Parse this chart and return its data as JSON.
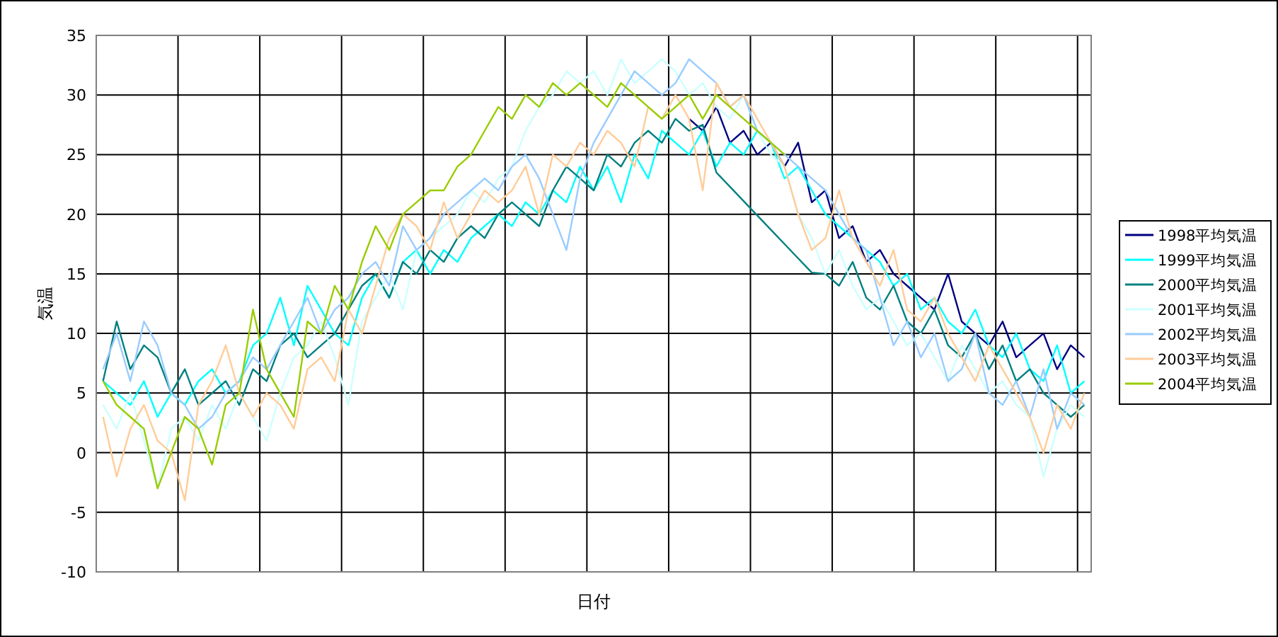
{
  "chart_data": {
    "type": "line",
    "xlabel": "日付",
    "ylabel": "気温",
    "categories": [
      null,
      null,
      null,
      null,
      null,
      null,
      null,
      null,
      null,
      null,
      null,
      null,
      null,
      null,
      null,
      null,
      null,
      null,
      null,
      null,
      null,
      null,
      null,
      null,
      null,
      null,
      null,
      null,
      null,
      null,
      null,
      null,
      null,
      null,
      null,
      null,
      null,
      null,
      null,
      null,
      null,
      null,
      null,
      null,
      null,
      null,
      null,
      null,
      null,
      null,
      null,
      null,
      null,
      null,
      null,
      null,
      null,
      null,
      null,
      null,
      null,
      null,
      null,
      null,
      null,
      null,
      null,
      null,
      null,
      null,
      null,
      null,
      null
    ],
    "series": [
      {
        "name": "1998平均気温",
        "color": "#000080",
        "values": [
          null,
          null,
          null,
          null,
          null,
          null,
          null,
          null,
          null,
          null,
          null,
          null,
          null,
          null,
          null,
          null,
          null,
          null,
          null,
          null,
          null,
          null,
          null,
          null,
          null,
          null,
          null,
          null,
          null,
          null,
          null,
          null,
          null,
          null,
          null,
          null,
          null,
          null,
          null,
          null,
          null,
          null,
          null,
          28,
          27,
          29,
          26,
          27,
          25,
          26,
          24,
          26,
          21,
          22,
          18,
          19,
          16,
          17,
          15,
          14,
          13,
          12,
          15,
          11,
          10,
          9,
          11,
          8,
          9,
          10,
          7,
          9,
          8
        ]
      },
      {
        "name": "1999平均気温",
        "color": "#00ffff",
        "values": [
          6,
          5,
          4,
          6,
          3,
          5,
          4,
          6,
          7,
          5,
          6,
          9,
          10,
          13,
          9,
          14,
          12,
          10,
          9,
          13,
          15,
          13,
          16,
          17,
          15,
          17,
          16,
          18,
          19,
          20,
          19,
          21,
          20,
          22,
          21,
          24,
          22,
          24,
          21,
          25,
          23,
          27,
          26,
          25,
          27,
          24,
          26,
          25,
          27,
          26,
          23,
          24,
          22,
          20,
          19,
          18,
          17,
          16,
          14,
          15,
          12,
          13,
          11,
          10,
          12,
          9,
          8,
          10,
          7,
          6,
          9,
          5,
          6
        ]
      },
      {
        "name": "2000平均気温",
        "color": "#008080",
        "values": [
          6,
          11,
          7,
          9,
          8,
          5,
          7,
          4,
          5,
          6,
          4,
          7,
          6,
          9,
          10,
          8,
          9,
          10,
          12,
          14,
          15,
          13,
          16,
          15,
          17,
          16,
          18,
          19,
          18,
          20,
          21,
          20,
          19,
          22,
          24,
          23,
          22,
          25,
          24,
          26,
          27,
          26,
          28,
          27,
          27.5,
          23.5,
          22.3,
          21.1,
          19.9,
          18.7,
          17.5,
          16.3,
          15.1,
          15,
          14,
          16,
          13,
          12,
          14,
          11,
          10,
          12,
          9,
          8,
          10,
          7,
          9,
          6,
          7,
          5,
          4,
          3,
          4
        ]
      },
      {
        "name": "2001平均気温",
        "color": "#ccffff",
        "values": [
          4,
          2,
          5,
          1,
          -3,
          2,
          3,
          1,
          4,
          2,
          5,
          3,
          1,
          5,
          8,
          9,
          11,
          8,
          4,
          11,
          13,
          15,
          12,
          17,
          18,
          19,
          20,
          22,
          21,
          23,
          24,
          27,
          29,
          30,
          32,
          31,
          32,
          30,
          33,
          31,
          32,
          33,
          32,
          30,
          31,
          29,
          28,
          30,
          27,
          25,
          24,
          20,
          18,
          15,
          17,
          14,
          12,
          13,
          11,
          9,
          10,
          8,
          6,
          9,
          7,
          5,
          6,
          4,
          3,
          -2,
          2,
          4,
          3
        ]
      },
      {
        "name": "2002平均気温",
        "color": "#99ccff",
        "values": [
          7,
          10,
          6,
          11,
          9,
          5,
          4,
          2,
          3,
          5,
          6,
          8,
          7,
          9,
          11,
          13,
          10,
          12,
          13,
          15,
          16,
          14,
          19,
          17,
          18,
          20,
          21,
          22,
          23,
          22,
          24,
          25,
          23,
          20,
          17,
          23,
          26,
          28,
          30,
          32,
          31,
          30,
          31,
          33,
          32,
          31,
          29,
          30,
          27,
          26,
          25,
          24,
          23,
          22,
          20,
          18,
          17,
          13,
          9,
          11,
          8,
          10,
          6,
          7,
          10,
          5,
          4,
          6,
          3,
          7,
          2,
          5,
          4
        ]
      },
      {
        "name": "2003平均気温",
        "color": "#ffcc99",
        "values": [
          3,
          -2,
          2,
          4,
          1,
          0,
          -4,
          4,
          6,
          9,
          5,
          3,
          5,
          4,
          2,
          7,
          8,
          6,
          12,
          10,
          14,
          18,
          20,
          19,
          17,
          21,
          18,
          20,
          22,
          21,
          22,
          24,
          20,
          25,
          24,
          26,
          25,
          27,
          26,
          24,
          29,
          28,
          30,
          28,
          22,
          31,
          29,
          30,
          28,
          26,
          24,
          20,
          17,
          18,
          22,
          18,
          16,
          14,
          17,
          12,
          11,
          13,
          10,
          8,
          6,
          9,
          7,
          5,
          3,
          0,
          4,
          2,
          5
        ]
      },
      {
        "name": "2004平均気温",
        "color": "#99cc00",
        "values": [
          6,
          4,
          3,
          2,
          -3,
          0,
          3,
          2,
          -1,
          4,
          5,
          12,
          7,
          5,
          3,
          11,
          10,
          14,
          12,
          16,
          19,
          17,
          20,
          21,
          22,
          22,
          24,
          25,
          27,
          29,
          28,
          30,
          29,
          31,
          30,
          31,
          30,
          29,
          31,
          30,
          29,
          28,
          29,
          30,
          28,
          30,
          29,
          28,
          27,
          26,
          25,
          null,
          null,
          null,
          null,
          null,
          null,
          null,
          null,
          null,
          null,
          null,
          null,
          null,
          null,
          null,
          null,
          null,
          null,
          null,
          null,
          null,
          null
        ]
      }
    ],
    "ylim": [
      -10,
      35
    ],
    "yticks": [
      -10,
      -5,
      0,
      5,
      10,
      15,
      20,
      25,
      30,
      35
    ],
    "grid": true,
    "legend": "right",
    "tick_labels": "y"
  }
}
